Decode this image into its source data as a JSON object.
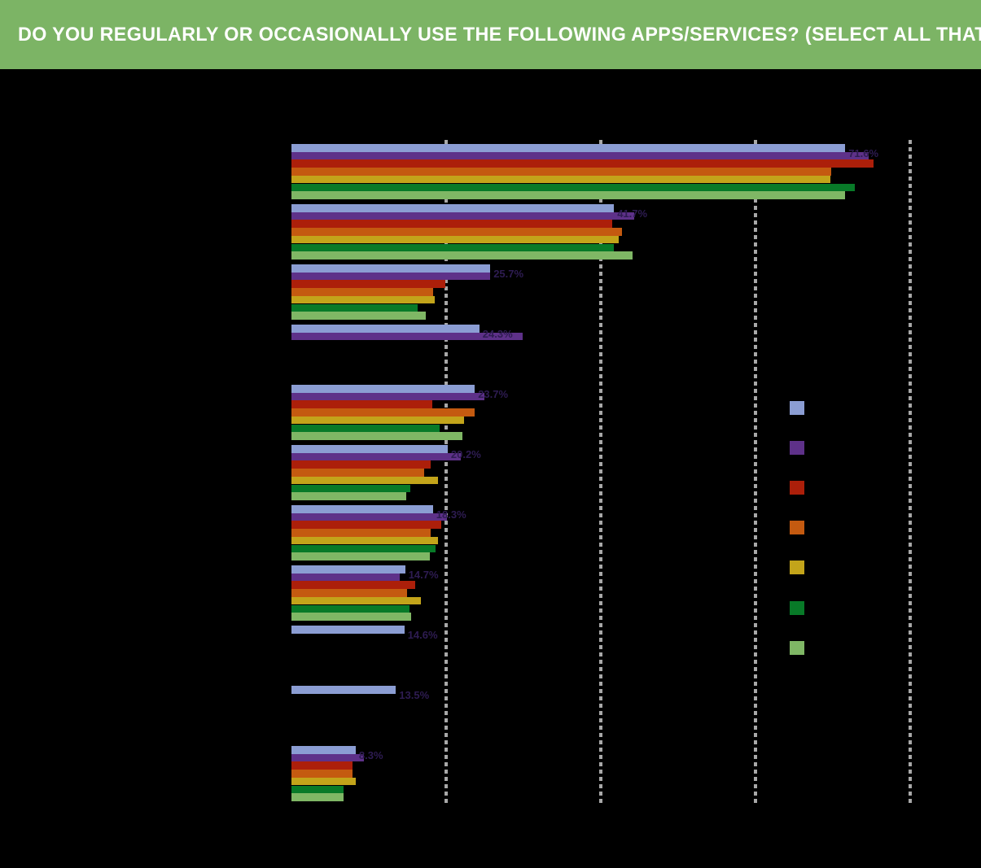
{
  "title_banner": {
    "text": "DO YOU REGULARLY OR OCCASIONALLY USE THE FOLLOWING APPS/SERVICES? (SELECT ALL THAT APPLY)",
    "bg_color": "#7CB465",
    "text_color": "#FFFFFF"
  },
  "colors": {
    "background": "#000000",
    "gridline": "#A8A8A8",
    "data_label": "#2E1C52"
  },
  "chart_data": {
    "type": "bar",
    "orientation": "horizontal",
    "title": "DO YOU REGULARLY OR OCCASIONALLY USE THE FOLLOWING APPS/SERVICES? (SELECT ALL THAT APPLY)",
    "xlabel": "",
    "ylabel": "",
    "axis": {
      "xlim_pct": [
        0,
        87.5
      ],
      "gridlines_pct": [
        20,
        40,
        60,
        80
      ],
      "tick_labels_visible": false,
      "unit": "%",
      "grid": "dashed-vertical"
    },
    "legend": {
      "position": "right",
      "labels_visible": false
    },
    "categories": [
      "",
      "",
      "",
      "",
      "",
      "",
      "",
      "",
      "",
      "",
      ""
    ],
    "series": [
      {
        "name": "series-1-periwinkle",
        "color": "#8B9DD3",
        "values": [
          71.6,
          41.7,
          25.7,
          24.3,
          23.7,
          20.2,
          18.3,
          14.7,
          14.6,
          13.5,
          8.3
        ]
      },
      {
        "name": "series-2-purple",
        "color": "#5E3189",
        "values": [
          74.6,
          44.3,
          25.7,
          29.9,
          24.9,
          21.9,
          20.1,
          14.0,
          0,
          0,
          9.4
        ]
      },
      {
        "name": "series-3-red",
        "color": "#AC1F0A",
        "values": [
          75.3,
          41.5,
          19.9,
          0,
          18.2,
          18.0,
          19.4,
          16.0,
          0,
          0,
          7.9
        ]
      },
      {
        "name": "series-4-orange",
        "color": "#C45A10",
        "values": [
          69.8,
          42.7,
          18.3,
          0,
          23.7,
          17.1,
          18.0,
          14.9,
          0,
          0,
          7.9
        ]
      },
      {
        "name": "series-5-gold",
        "color": "#C3A41A",
        "values": [
          69.7,
          42.3,
          18.5,
          0,
          22.3,
          18.9,
          18.9,
          16.7,
          0,
          0,
          8.3
        ]
      },
      {
        "name": "series-6-dark-green",
        "color": "#087A28",
        "values": [
          72.8,
          41.7,
          16.3,
          0,
          19.1,
          15.4,
          18.6,
          15.3,
          0,
          0,
          6.7
        ]
      },
      {
        "name": "series-7-light-green",
        "color": "#7FB765",
        "values": [
          71.6,
          44.1,
          17.4,
          0,
          22.1,
          14.8,
          17.9,
          15.5,
          0,
          0,
          6.7
        ]
      }
    ],
    "data_labels": {
      "series_index": 0,
      "position": "outside-end",
      "values": [
        "71.6%",
        "41.7%",
        "25.7%",
        "24.3%",
        "23.7%",
        "20.2%",
        "18.3%",
        "14.7%",
        "14.6%",
        "13.5%",
        "8.3%"
      ]
    }
  }
}
